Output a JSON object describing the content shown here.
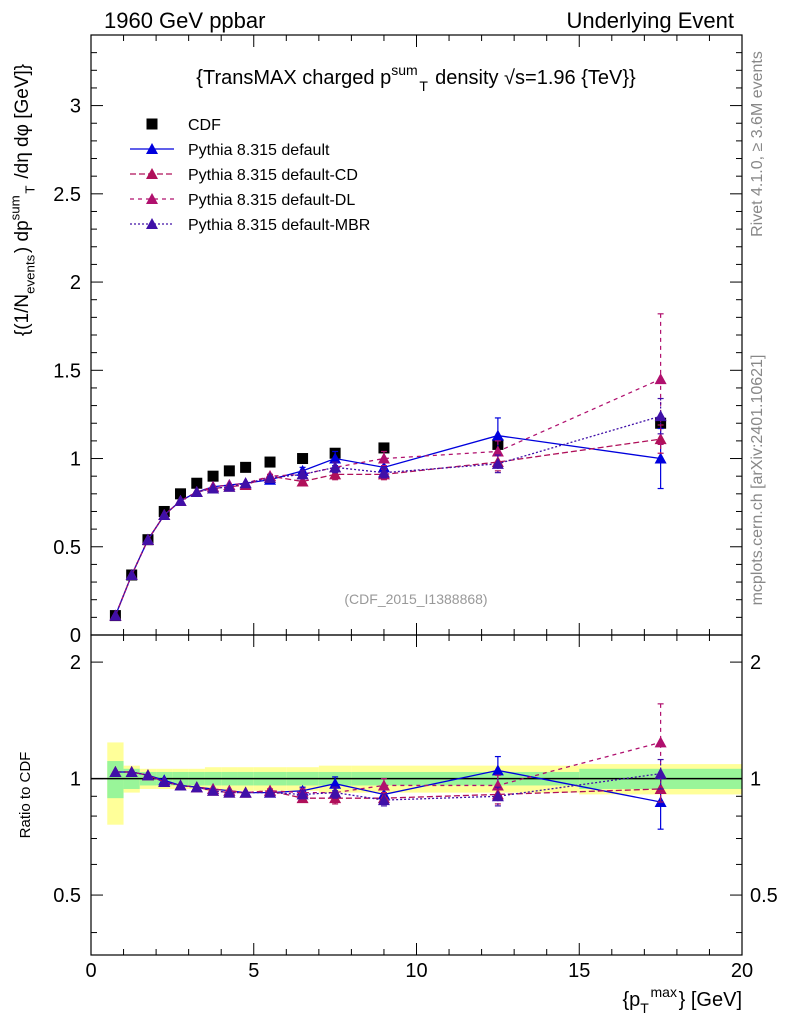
{
  "header": {
    "left": "1960 GeV ppbar",
    "right": "Underlying Event"
  },
  "side": {
    "rivet": "Rivet 4.1.0, ≥ 3.6M events",
    "mcplots": "mcplots.cern.ch [arXiv:2401.10621]"
  },
  "main_title": "{TransMAX charged p^{sum}_T density √s=1.96 {TeV}}",
  "analysis_id": "(CDF_2015_I1388868)",
  "ylabel_main": "{(1/N_{events}) dp^{sum}_T /dη dφ [GeV]}",
  "ylabel_ratio": "Ratio to CDF",
  "xlabel": "{p_T^{max}} [GeV]",
  "colors": {
    "data": "#000000",
    "default": "#0000dd",
    "cd": "#b0105a",
    "dl": "#b0106e",
    "mbr": "#4010a8",
    "band_inner": "#99f599",
    "band_outer": "#ffff99"
  },
  "chart_data": [
    {
      "type": "scatter",
      "panel": "main",
      "xlim": [
        0,
        20
      ],
      "ylim": [
        0,
        3.4
      ],
      "xticks": [
        0,
        5,
        10,
        15,
        20
      ],
      "yticks": [
        0,
        0.5,
        1,
        1.5,
        2,
        2.5,
        3
      ],
      "ytick_labels": [
        "0",
        "0.5",
        "1",
        "1.5",
        "2",
        "2.5",
        "3"
      ],
      "series": [
        {
          "name": "CDF",
          "style": "data",
          "x": [
            0.75,
            1.25,
            1.75,
            2.25,
            2.75,
            3.25,
            3.75,
            4.25,
            4.75,
            5.5,
            6.5,
            7.5,
            9.0,
            12.5,
            17.5
          ],
          "y": [
            0.11,
            0.34,
            0.54,
            0.7,
            0.8,
            0.86,
            0.9,
            0.93,
            0.95,
            0.98,
            1.0,
            1.03,
            1.06,
            1.08,
            1.2
          ],
          "err": [
            0,
            0,
            0,
            0,
            0,
            0,
            0,
            0,
            0,
            0,
            0,
            0,
            0,
            0,
            0
          ]
        },
        {
          "name": "Pythia 8.315 default",
          "style": "default",
          "x": [
            0.75,
            1.25,
            1.75,
            2.25,
            2.75,
            3.25,
            3.75,
            4.25,
            4.75,
            5.5,
            6.5,
            7.5,
            9.0,
            12.5,
            17.5
          ],
          "y": [
            0.11,
            0.34,
            0.54,
            0.68,
            0.76,
            0.81,
            0.84,
            0.85,
            0.86,
            0.88,
            0.93,
            1.0,
            0.95,
            1.13,
            1.0
          ],
          "err": [
            0,
            0,
            0,
            0,
            0,
            0,
            0,
            0,
            0,
            0.01,
            0.02,
            0.04,
            0.04,
            0.1,
            0.17
          ]
        },
        {
          "name": "Pythia 8.315 default-CD",
          "style": "cd",
          "x": [
            0.75,
            1.25,
            1.75,
            2.25,
            2.75,
            3.25,
            3.75,
            4.25,
            4.75,
            5.5,
            6.5,
            7.5,
            9.0,
            12.5,
            17.5
          ],
          "y": [
            0.11,
            0.34,
            0.54,
            0.68,
            0.76,
            0.81,
            0.83,
            0.84,
            0.85,
            0.9,
            0.87,
            0.91,
            0.91,
            0.98,
            1.11
          ],
          "err": [
            0,
            0,
            0,
            0,
            0,
            0,
            0,
            0,
            0,
            0.01,
            0.02,
            0.03,
            0.03,
            0.05,
            0.08
          ]
        },
        {
          "name": "Pythia 8.315 default-DL",
          "style": "dl",
          "x": [
            0.75,
            1.25,
            1.75,
            2.25,
            2.75,
            3.25,
            3.75,
            4.25,
            4.75,
            5.5,
            6.5,
            7.5,
            9.0,
            12.5,
            17.5
          ],
          "y": [
            0.11,
            0.34,
            0.54,
            0.68,
            0.76,
            0.81,
            0.84,
            0.85,
            0.86,
            0.9,
            0.91,
            0.95,
            1.0,
            1.04,
            1.45
          ],
          "err": [
            0,
            0,
            0,
            0,
            0,
            0,
            0,
            0,
            0,
            0.01,
            0.02,
            0.03,
            0.04,
            0.06,
            0.37
          ]
        },
        {
          "name": "Pythia 8.315 default-MBR",
          "style": "mbr",
          "x": [
            0.75,
            1.25,
            1.75,
            2.25,
            2.75,
            3.25,
            3.75,
            4.25,
            4.75,
            5.5,
            6.5,
            7.5,
            9.0,
            12.5,
            17.5
          ],
          "y": [
            0.11,
            0.34,
            0.54,
            0.68,
            0.76,
            0.81,
            0.83,
            0.84,
            0.86,
            0.89,
            0.91,
            0.95,
            0.92,
            0.97,
            1.24
          ],
          "err": [
            0,
            0,
            0,
            0,
            0,
            0,
            0,
            0,
            0,
            0.01,
            0.02,
            0.03,
            0.03,
            0.05,
            0.1
          ]
        }
      ]
    },
    {
      "type": "scatter",
      "panel": "ratio",
      "xlim": [
        0,
        20
      ],
      "ylim": [
        0.35,
        2.35
      ],
      "xticks": [
        0,
        5,
        10,
        15,
        20
      ],
      "xtick_labels": [
        "0",
        "5",
        "10",
        "15",
        "20"
      ],
      "yticks": [
        0.5,
        1,
        2
      ],
      "ytick_labels": [
        "0.5",
        "1",
        "2"
      ],
      "bands": {
        "edges": [
          0.5,
          1.0,
          1.5,
          2.0,
          2.5,
          3.0,
          3.5,
          4.0,
          4.5,
          5.0,
          6.0,
          7.0,
          8.0,
          10.0,
          15.0,
          20.0
        ],
        "inner": [
          0.11,
          0.06,
          0.04,
          0.04,
          0.04,
          0.04,
          0.04,
          0.04,
          0.04,
          0.04,
          0.04,
          0.04,
          0.04,
          0.04,
          0.06
        ],
        "outer": [
          0.24,
          0.08,
          0.06,
          0.06,
          0.06,
          0.06,
          0.07,
          0.07,
          0.07,
          0.07,
          0.07,
          0.08,
          0.08,
          0.08,
          0.09
        ]
      },
      "series": [
        {
          "name": "Pythia 8.315 default",
          "style": "default",
          "x": [
            0.75,
            1.25,
            1.75,
            2.25,
            2.75,
            3.25,
            3.75,
            4.25,
            4.75,
            5.5,
            6.5,
            7.5,
            9.0,
            12.5,
            17.5
          ],
          "y": [
            1.04,
            1.04,
            1.02,
            0.99,
            0.96,
            0.95,
            0.94,
            0.93,
            0.92,
            0.92,
            0.93,
            0.97,
            0.91,
            1.05,
            0.87
          ],
          "err": [
            0,
            0,
            0,
            0,
            0,
            0,
            0,
            0,
            0,
            0.01,
            0.02,
            0.04,
            0.04,
            0.09,
            0.13
          ]
        },
        {
          "name": "Pythia 8.315 default-CD",
          "style": "cd",
          "x": [
            0.75,
            1.25,
            1.75,
            2.25,
            2.75,
            3.25,
            3.75,
            4.25,
            4.75,
            5.5,
            6.5,
            7.5,
            9.0,
            12.5,
            17.5
          ],
          "y": [
            1.04,
            1.04,
            1.02,
            0.98,
            0.96,
            0.95,
            0.93,
            0.92,
            0.92,
            0.93,
            0.89,
            0.89,
            0.89,
            0.91,
            0.94
          ],
          "err": [
            0,
            0,
            0,
            0,
            0,
            0,
            0,
            0,
            0,
            0.01,
            0.02,
            0.03,
            0.03,
            0.05,
            0.07
          ]
        },
        {
          "name": "Pythia 8.315 default-DL",
          "style": "dl",
          "x": [
            0.75,
            1.25,
            1.75,
            2.25,
            2.75,
            3.25,
            3.75,
            4.25,
            4.75,
            5.5,
            6.5,
            7.5,
            9.0,
            12.5,
            17.5
          ],
          "y": [
            1.04,
            1.04,
            1.02,
            0.98,
            0.96,
            0.95,
            0.94,
            0.93,
            0.92,
            0.93,
            0.92,
            0.92,
            0.96,
            0.96,
            1.24
          ],
          "err": [
            0,
            0,
            0,
            0,
            0,
            0,
            0,
            0,
            0,
            0.01,
            0.02,
            0.03,
            0.04,
            0.06,
            0.32
          ]
        },
        {
          "name": "Pythia 8.315 default-MBR",
          "style": "mbr",
          "x": [
            0.75,
            1.25,
            1.75,
            2.25,
            2.75,
            3.25,
            3.75,
            4.25,
            4.75,
            5.5,
            6.5,
            7.5,
            9.0,
            12.5,
            17.5
          ],
          "y": [
            1.04,
            1.04,
            1.02,
            0.98,
            0.96,
            0.95,
            0.93,
            0.92,
            0.92,
            0.92,
            0.91,
            0.92,
            0.88,
            0.9,
            1.03
          ],
          "err": [
            0,
            0,
            0,
            0,
            0,
            0,
            0,
            0,
            0,
            0.01,
            0.02,
            0.03,
            0.03,
            0.05,
            0.09
          ]
        }
      ]
    }
  ]
}
